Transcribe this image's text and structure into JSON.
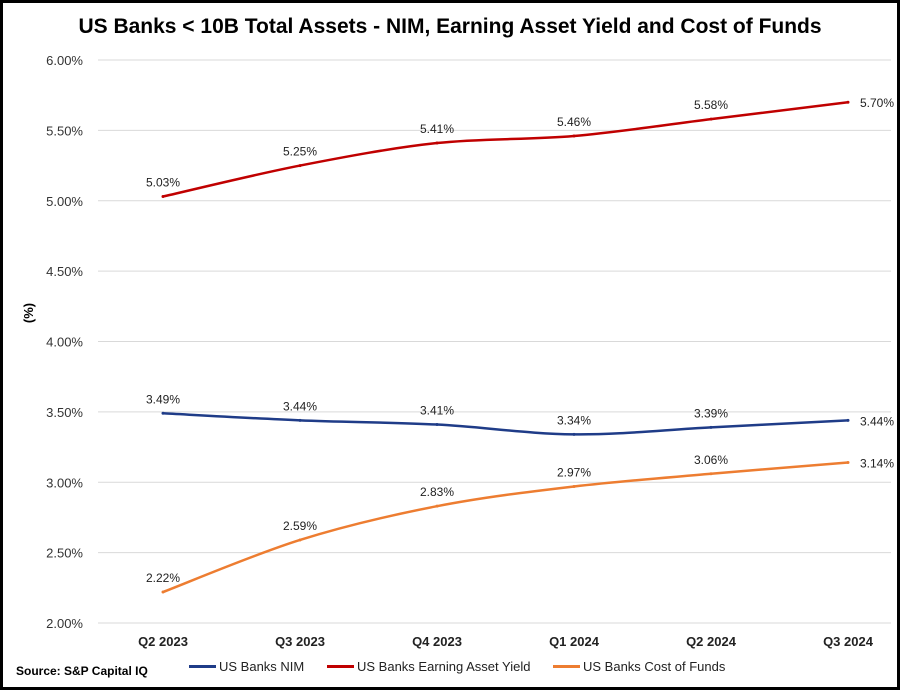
{
  "chart_data": {
    "type": "line",
    "title": "US Banks < 10B Total Assets - NIM, Earning Asset Yield and Cost of Funds",
    "xlabel": "",
    "ylabel": "(%)",
    "categories": [
      "Q2 2023",
      "Q3 2023",
      "Q4 2023",
      "Q1 2024",
      "Q2 2024",
      "Q3 2024"
    ],
    "ylim": [
      2.0,
      6.0
    ],
    "yticks": [
      "2.00%",
      "2.50%",
      "3.00%",
      "3.50%",
      "4.00%",
      "4.50%",
      "5.00%",
      "5.50%",
      "6.00%"
    ],
    "grid": true,
    "legend_position": "bottom",
    "series": [
      {
        "name": "US Banks NIM",
        "color": "#1f3c88",
        "values": [
          3.49,
          3.44,
          3.41,
          3.34,
          3.39,
          3.44
        ],
        "labels": [
          "3.49%",
          "3.44%",
          "3.41%",
          "3.34%",
          "3.39%",
          "3.44%"
        ]
      },
      {
        "name": "US Banks Earning Asset Yield",
        "color": "#c00000",
        "values": [
          5.03,
          5.25,
          5.41,
          5.46,
          5.58,
          5.7
        ],
        "labels": [
          "5.03%",
          "5.25%",
          "5.41%",
          "5.46%",
          "5.58%",
          "5.70%"
        ]
      },
      {
        "name": "US Banks Cost of Funds",
        "color": "#ed7d31",
        "values": [
          2.22,
          2.59,
          2.83,
          2.97,
          3.06,
          3.14
        ],
        "labels": [
          "2.22%",
          "2.59%",
          "2.83%",
          "2.97%",
          "3.06%",
          "3.14%"
        ]
      }
    ]
  },
  "source": "Source: S&P Capital IQ"
}
